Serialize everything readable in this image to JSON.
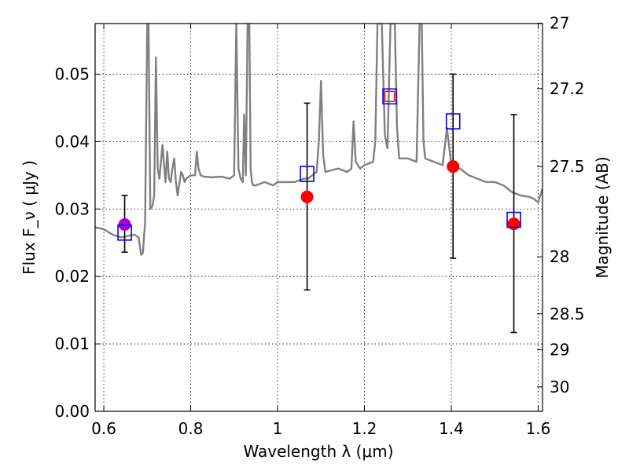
{
  "chart_data": {
    "type": "scatter",
    "xlabel": "Wavelength  λ (μm)",
    "ylabel": "Flux  F_ν  ( μJy )",
    "y2label": "Magnitude (AB)",
    "xlim": [
      0.58,
      1.61
    ],
    "ylim": [
      0.0,
      0.0575
    ],
    "grid": true,
    "x_ticks": [
      0.6,
      0.8,
      1.0,
      1.2,
      1.4,
      1.6
    ],
    "x_tick_labels": [
      "0.6",
      "0.8",
      "1",
      "1.2",
      "1.4",
      "1.6"
    ],
    "y_ticks": [
      0.0,
      0.01,
      0.02,
      0.03,
      0.04,
      0.05
    ],
    "y_tick_labels": [
      "0.00",
      "0.01",
      "0.02",
      "0.03",
      "0.04",
      "0.05"
    ],
    "mag_ticks": [
      {
        "mag": 27.0,
        "label": "27"
      },
      {
        "mag": 27.2,
        "label": "27.2"
      },
      {
        "mag": 27.5,
        "label": "27.5"
      },
      {
        "mag": 28.0,
        "label": "28"
      },
      {
        "mag": 28.5,
        "label": "28.5"
      },
      {
        "mag": 29.0,
        "label": "29"
      },
      {
        "mag": 30.0,
        "label": "30"
      }
    ],
    "model_spectrum": {
      "color": "#808080",
      "x": [
        0.58,
        0.6,
        0.62,
        0.64,
        0.655,
        0.67,
        0.68,
        0.686,
        0.69,
        0.695,
        0.7,
        0.703,
        0.707,
        0.712,
        0.716,
        0.72,
        0.724,
        0.728,
        0.735,
        0.742,
        0.746,
        0.75,
        0.754,
        0.758,
        0.762,
        0.766,
        0.77,
        0.778,
        0.782,
        0.786,
        0.79,
        0.8,
        0.81,
        0.814,
        0.818,
        0.823,
        0.83,
        0.85,
        0.87,
        0.89,
        0.9,
        0.905,
        0.91,
        0.915,
        0.92,
        0.923,
        0.927,
        0.931,
        0.935,
        0.938,
        0.941,
        0.944,
        0.95,
        0.97,
        0.99,
        1.0,
        1.02,
        1.04,
        1.06,
        1.07,
        1.08,
        1.09,
        1.095,
        1.1,
        1.105,
        1.11,
        1.14,
        1.16,
        1.17,
        1.175,
        1.18,
        1.19,
        1.2,
        1.22,
        1.225,
        1.23,
        1.24,
        1.247,
        1.253,
        1.26,
        1.27,
        1.275,
        1.28,
        1.3,
        1.32,
        1.327,
        1.332,
        1.336,
        1.34,
        1.36,
        1.38,
        1.39,
        1.4,
        1.42,
        1.44,
        1.46,
        1.48,
        1.5,
        1.52,
        1.54,
        1.56,
        1.58,
        1.59,
        1.6,
        1.61
      ],
      "y": [
        0.0273,
        0.027,
        0.0262,
        0.0258,
        0.026,
        0.0262,
        0.0258,
        0.0232,
        0.0235,
        0.028,
        0.0575,
        0.0575,
        0.03,
        0.0305,
        0.032,
        0.0525,
        0.036,
        0.0345,
        0.0395,
        0.034,
        0.0385,
        0.0345,
        0.034,
        0.036,
        0.0375,
        0.034,
        0.032,
        0.0355,
        0.035,
        0.034,
        0.0345,
        0.035,
        0.035,
        0.0385,
        0.036,
        0.035,
        0.0348,
        0.0347,
        0.0348,
        0.0345,
        0.035,
        0.0575,
        0.036,
        0.0345,
        0.034,
        0.044,
        0.035,
        0.0575,
        0.0575,
        0.036,
        0.034,
        0.0335,
        0.0335,
        0.034,
        0.0335,
        0.034,
        0.034,
        0.034,
        0.0345,
        0.0345,
        0.035,
        0.0355,
        0.04,
        0.049,
        0.038,
        0.0355,
        0.036,
        0.0355,
        0.036,
        0.043,
        0.037,
        0.036,
        0.0365,
        0.037,
        0.04,
        0.0575,
        0.0575,
        0.041,
        0.039,
        0.0575,
        0.0575,
        0.042,
        0.0375,
        0.0375,
        0.037,
        0.0575,
        0.0575,
        0.04,
        0.0375,
        0.037,
        0.0365,
        0.042,
        0.0365,
        0.036,
        0.035,
        0.0345,
        0.034,
        0.034,
        0.0335,
        0.0325,
        0.032,
        0.0318,
        0.0315,
        0.031,
        0.033
      ]
    },
    "photometry": [
      {
        "x": 0.648,
        "y": 0.0277,
        "yerr_low": 0.0236,
        "yerr_high": 0.032,
        "color": "#aa00cc"
      },
      {
        "x": 1.068,
        "y": 0.0318,
        "yerr_low": 0.018,
        "yerr_high": 0.0457,
        "color": "#ff0000"
      },
      {
        "x": 1.404,
        "y": 0.0363,
        "yerr_low": 0.0227,
        "yerr_high": 0.05,
        "color": "#ff0000"
      },
      {
        "x": 1.544,
        "y": 0.0278,
        "yerr_low": 0.0117,
        "yerr_high": 0.044,
        "color": "#ff0000"
      }
    ],
    "model_bandpass": [
      {
        "x": 0.648,
        "y": 0.0265
      },
      {
        "x": 1.068,
        "y": 0.0352
      },
      {
        "x": 1.258,
        "y": 0.0467
      },
      {
        "x": 1.404,
        "y": 0.043
      },
      {
        "x": 1.544,
        "y": 0.0284
      }
    ],
    "colors": {
      "box": "#0000ff",
      "box_inner_red": "#ff0000",
      "errorbar": "#000000",
      "grid": "#000000"
    }
  }
}
